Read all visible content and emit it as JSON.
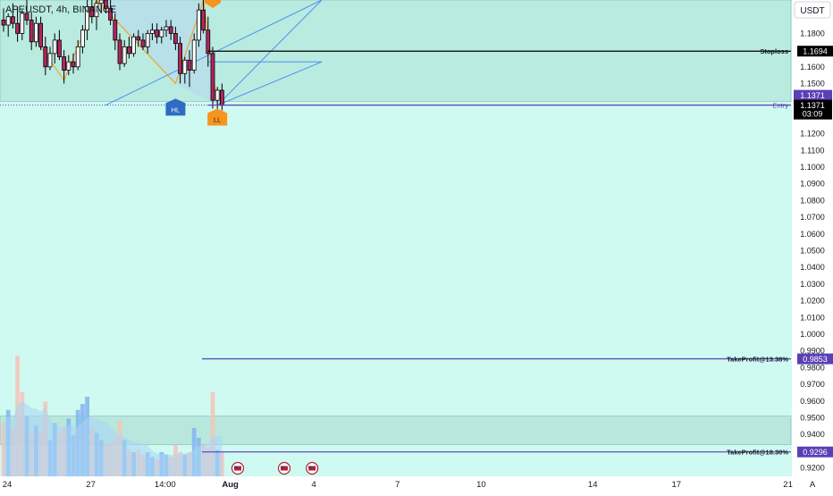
{
  "header": {
    "symbol_line": "APEUSDT, 4h, BINANCE"
  },
  "currency_button": {
    "label": "USDT"
  },
  "colors": {
    "background": "#cffaf1",
    "zone_upper": "#b9ebe0",
    "zone_lower": "#b8e8dd",
    "candle_up": "#ffffff",
    "candle_down": "#b1265f",
    "candle_outline": "#000000",
    "pattern_line": "#f59e0b",
    "pattern_fill": "#b6d5f2",
    "blue_lines": "#4f8ff0",
    "level_line": "#5b3fb5",
    "stoploss_line": "#000000",
    "marker_HL": "#2f6bc2",
    "marker_LL": "#f7941d",
    "volume_up": "#86b8ef",
    "volume_down": "#f2c6bb",
    "volume_ma": "#a9d3f5"
  },
  "chart_data": {
    "type": "candlestick",
    "price_axis": {
      "min": 0.915,
      "max": 1.2,
      "tick_values": [
        1.18,
        1.16,
        1.15,
        1.14,
        1.12,
        1.11,
        1.1,
        1.09,
        1.08,
        1.07,
        1.06,
        1.05,
        1.04,
        1.03,
        1.02,
        1.01,
        1.0,
        0.99,
        0.98,
        0.97,
        0.96,
        0.95,
        0.94,
        0.93,
        0.92
      ],
      "tick_labels": [
        "1.1800",
        "1.1600",
        "1.1500",
        "1.1400",
        "1.1200",
        "1.1100",
        "1.1000",
        "1.0900",
        "1.0800",
        "1.0700",
        "1.0600",
        "1.0500",
        "1.0400",
        "1.0300",
        "1.0200",
        "1.0100",
        "1.0000",
        "0.9900",
        "0.9800",
        "0.9700",
        "0.9600",
        "0.9500",
        "0.9400",
        "0.9300",
        "0.9200"
      ]
    },
    "time_axis": {
      "labels": [
        "24",
        "27",
        "14:00",
        "Aug",
        "4",
        "7",
        "10",
        "14",
        "17",
        "21"
      ],
      "bar_index": [
        0,
        18,
        34,
        48,
        66,
        84,
        102,
        126,
        144,
        168
      ],
      "bold": [
        false,
        false,
        false,
        true,
        false,
        false,
        false,
        false,
        false,
        false
      ]
    },
    "candles": [
      {
        "o": 1.188,
        "h": 1.195,
        "l": 1.181,
        "c": 1.185
      },
      {
        "o": 1.185,
        "h": 1.192,
        "l": 1.178,
        "c": 1.19
      },
      {
        "o": 1.19,
        "h": 1.198,
        "l": 1.183,
        "c": 1.186
      },
      {
        "o": 1.186,
        "h": 1.196,
        "l": 1.175,
        "c": 1.18
      },
      {
        "o": 1.18,
        "h": 1.194,
        "l": 1.176,
        "c": 1.192
      },
      {
        "o": 1.192,
        "h": 1.2,
        "l": 1.185,
        "c": 1.188
      },
      {
        "o": 1.188,
        "h": 1.193,
        "l": 1.17,
        "c": 1.175
      },
      {
        "o": 1.175,
        "h": 1.19,
        "l": 1.172,
        "c": 1.186
      },
      {
        "o": 1.186,
        "h": 1.19,
        "l": 1.17,
        "c": 1.172
      },
      {
        "o": 1.172,
        "h": 1.178,
        "l": 1.155,
        "c": 1.16
      },
      {
        "o": 1.16,
        "h": 1.172,
        "l": 1.158,
        "c": 1.168
      },
      {
        "o": 1.168,
        "h": 1.18,
        "l": 1.162,
        "c": 1.176
      },
      {
        "o": 1.176,
        "h": 1.182,
        "l": 1.164,
        "c": 1.166
      },
      {
        "o": 1.166,
        "h": 1.17,
        "l": 1.15,
        "c": 1.158
      },
      {
        "o": 1.158,
        "h": 1.167,
        "l": 1.155,
        "c": 1.163
      },
      {
        "o": 1.163,
        "h": 1.168,
        "l": 1.156,
        "c": 1.16
      },
      {
        "o": 1.16,
        "h": 1.176,
        "l": 1.158,
        "c": 1.172
      },
      {
        "o": 1.172,
        "h": 1.185,
        "l": 1.168,
        "c": 1.182
      },
      {
        "o": 1.182,
        "h": 1.2,
        "l": 1.176,
        "c": 1.196
      },
      {
        "o": 1.196,
        "h": 1.2,
        "l": 1.186,
        "c": 1.19
      },
      {
        "o": 1.19,
        "h": 1.2,
        "l": 1.182,
        "c": 1.198
      },
      {
        "o": 1.198,
        "h": 1.2,
        "l": 1.192,
        "c": 1.2
      },
      {
        "o": 1.2,
        "h": 1.2,
        "l": 1.192,
        "c": 1.195
      },
      {
        "o": 1.195,
        "h": 1.2,
        "l": 1.185,
        "c": 1.188
      },
      {
        "o": 1.188,
        "h": 1.192,
        "l": 1.17,
        "c": 1.176
      },
      {
        "o": 1.176,
        "h": 1.18,
        "l": 1.158,
        "c": 1.162
      },
      {
        "o": 1.162,
        "h": 1.176,
        "l": 1.16,
        "c": 1.172
      },
      {
        "o": 1.172,
        "h": 1.178,
        "l": 1.165,
        "c": 1.168
      },
      {
        "o": 1.168,
        "h": 1.18,
        "l": 1.166,
        "c": 1.178
      },
      {
        "o": 1.178,
        "h": 1.182,
        "l": 1.172,
        "c": 1.176
      },
      {
        "o": 1.176,
        "h": 1.18,
        "l": 1.17,
        "c": 1.172
      },
      {
        "o": 1.172,
        "h": 1.182,
        "l": 1.168,
        "c": 1.18
      },
      {
        "o": 1.18,
        "h": 1.186,
        "l": 1.176,
        "c": 1.182
      },
      {
        "o": 1.182,
        "h": 1.186,
        "l": 1.174,
        "c": 1.178
      },
      {
        "o": 1.178,
        "h": 1.184,
        "l": 1.174,
        "c": 1.182
      },
      {
        "o": 1.182,
        "h": 1.188,
        "l": 1.178,
        "c": 1.184
      },
      {
        "o": 1.184,
        "h": 1.188,
        "l": 1.176,
        "c": 1.18
      },
      {
        "o": 1.18,
        "h": 1.184,
        "l": 1.17,
        "c": 1.174
      },
      {
        "o": 1.174,
        "h": 1.178,
        "l": 1.15,
        "c": 1.156
      },
      {
        "o": 1.156,
        "h": 1.166,
        "l": 1.15,
        "c": 1.164
      },
      {
        "o": 1.164,
        "h": 1.17,
        "l": 1.148,
        "c": 1.158
      },
      {
        "o": 1.158,
        "h": 1.18,
        "l": 1.156,
        "c": 1.176
      },
      {
        "o": 1.176,
        "h": 1.198,
        "l": 1.172,
        "c": 1.194
      },
      {
        "o": 1.194,
        "h": 1.2,
        "l": 1.18,
        "c": 1.182
      },
      {
        "o": 1.182,
        "h": 1.19,
        "l": 1.16,
        "c": 1.168
      },
      {
        "o": 1.168,
        "h": 1.172,
        "l": 1.135,
        "c": 1.14
      },
      {
        "o": 1.14,
        "h": 1.148,
        "l": 1.134,
        "c": 1.146
      },
      {
        "o": 1.146,
        "h": 1.15,
        "l": 1.134,
        "c": 1.137
      }
    ],
    "volumes": [
      {
        "v": 0.45,
        "up": false
      },
      {
        "v": 0.55,
        "up": true
      },
      {
        "v": 0.4,
        "up": false
      },
      {
        "v": 1.0,
        "up": false
      },
      {
        "v": 0.7,
        "up": false
      },
      {
        "v": 0.5,
        "up": true
      },
      {
        "v": 0.35,
        "up": false
      },
      {
        "v": 0.42,
        "up": true
      },
      {
        "v": 0.38,
        "up": false
      },
      {
        "v": 0.62,
        "up": false
      },
      {
        "v": 0.3,
        "up": true
      },
      {
        "v": 0.44,
        "up": true
      },
      {
        "v": 0.36,
        "up": false
      },
      {
        "v": 0.4,
        "up": false
      },
      {
        "v": 0.48,
        "up": true
      },
      {
        "v": 0.34,
        "up": true
      },
      {
        "v": 0.55,
        "up": true
      },
      {
        "v": 0.6,
        "up": true
      },
      {
        "v": 0.66,
        "up": true
      },
      {
        "v": 0.4,
        "up": false
      },
      {
        "v": 0.36,
        "up": true
      },
      {
        "v": 0.3,
        "up": true
      },
      {
        "v": 0.28,
        "up": false
      },
      {
        "v": 0.26,
        "up": false
      },
      {
        "v": 0.32,
        "up": false
      },
      {
        "v": 0.46,
        "up": false
      },
      {
        "v": 0.3,
        "up": true
      },
      {
        "v": 0.22,
        "up": false
      },
      {
        "v": 0.2,
        "up": true
      },
      {
        "v": 0.22,
        "up": false
      },
      {
        "v": 0.18,
        "up": false
      },
      {
        "v": 0.2,
        "up": true
      },
      {
        "v": 0.16,
        "up": true
      },
      {
        "v": 0.14,
        "up": false
      },
      {
        "v": 0.2,
        "up": true
      },
      {
        "v": 0.18,
        "up": true
      },
      {
        "v": 0.16,
        "up": false
      },
      {
        "v": 0.26,
        "up": false
      },
      {
        "v": 0.2,
        "up": false
      },
      {
        "v": 0.18,
        "up": true
      },
      {
        "v": 0.2,
        "up": false
      },
      {
        "v": 0.4,
        "up": true
      },
      {
        "v": 0.32,
        "up": true
      },
      {
        "v": 0.26,
        "up": false
      },
      {
        "v": 0.24,
        "up": false
      },
      {
        "v": 0.7,
        "up": false
      },
      {
        "v": 0.22,
        "up": true
      },
      {
        "v": 0.2,
        "up": false
      }
    ],
    "levels": [
      {
        "name": "Stoploss",
        "value": 1.1694,
        "label": "Stoploss",
        "price_label": "1.1694",
        "style": "stoploss"
      },
      {
        "name": "Entry",
        "value": 1.1371,
        "label": "Entry",
        "price_label": "1.1371",
        "style": "entry"
      },
      {
        "name": "TP1",
        "value": 0.9853,
        "label": "TakeProfit@13.38%",
        "price_label": "0.9853",
        "style": "tp"
      },
      {
        "name": "TP2",
        "value": 0.9296,
        "label": "TakeProfit@18.30%",
        "price_label": "0.9296",
        "style": "tp"
      }
    ],
    "last_price": {
      "value": 1.1371,
      "label": "1.1371",
      "countdown": "03:09"
    },
    "extra_price_label": {
      "value": 1.1371,
      "label": "1.1371"
    },
    "pattern_markers": [
      {
        "label": "HL",
        "bar": 37,
        "color_key": "marker_HL",
        "position": "below"
      },
      {
        "label": "LL",
        "bar": 46,
        "color_key": "marker_LL",
        "position": "below"
      },
      {
        "label": "",
        "bar": 45,
        "color_key": "marker_LL",
        "position": "above"
      }
    ],
    "zones": [
      {
        "from": 1.2,
        "to": 1.1394,
        "color_key": "zone_upper"
      },
      {
        "from": 0.951,
        "to": 0.934,
        "color_key": "zone_lower"
      }
    ],
    "economic_events": [
      {
        "bar": 50
      },
      {
        "bar": 60
      },
      {
        "bar": 66
      }
    ],
    "scale_button": "A"
  }
}
